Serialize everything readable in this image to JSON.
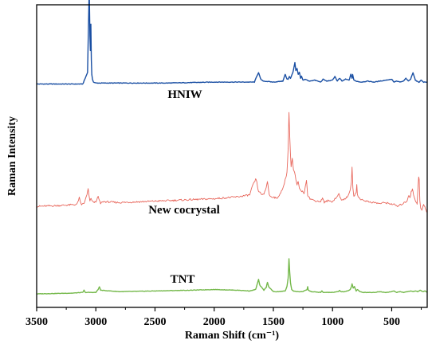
{
  "chart_data": {
    "type": "line",
    "xlabel": "Raman Shift (cm⁻¹)",
    "ylabel": "Raman Intensity",
    "xlim": [
      3500,
      200
    ],
    "x_reversed": true,
    "x_ticks": [
      3500,
      3000,
      2500,
      2000,
      1500,
      1000,
      500
    ],
    "y_ticks_shown": false,
    "grid": false,
    "legend": "none (series labeled inline above each trace)",
    "series": [
      {
        "name": "HNIW",
        "color": "#1a4fa3",
        "baseline": 0.75,
        "x": [
          3500,
          3110,
          3070,
          3056,
          3050,
          3046,
          3042,
          3038,
          3034,
          3028,
          3020,
          3000,
          2800,
          2400,
          2000,
          1800,
          1660,
          1640,
          1625,
          1610,
          1600,
          1580,
          1500,
          1420,
          1400,
          1385,
          1375,
          1365,
          1355,
          1345,
          1335,
          1325,
          1318,
          1310,
          1300,
          1290,
          1280,
          1270,
          1262,
          1250,
          1230,
          1200,
          1150,
          1100,
          1080,
          1050,
          1000,
          980,
          960,
          940,
          920,
          890,
          860,
          845,
          835,
          830,
          820,
          800,
          760,
          700,
          650,
          600,
          550,
          500,
          480,
          460,
          430,
          400,
          380,
          360,
          340,
          320,
          310,
          300,
          290,
          270,
          250,
          230,
          200
        ],
        "y": [
          0,
          0,
          0.12,
          1.0,
          0.5,
          0.35,
          0.62,
          0.25,
          0.1,
          0.05,
          0.02,
          0.01,
          0.01,
          0.01,
          0.02,
          0.02,
          0.02,
          0.08,
          0.12,
          0.06,
          0.04,
          0.03,
          0.02,
          0.03,
          0.1,
          0.05,
          0.05,
          0.08,
          0.06,
          0.09,
          0.12,
          0.18,
          0.22,
          0.14,
          0.16,
          0.1,
          0.12,
          0.06,
          0.08,
          0.04,
          0.05,
          0.03,
          0.04,
          0.02,
          0.05,
          0.03,
          0.04,
          0.08,
          0.03,
          0.06,
          0.03,
          0.05,
          0.04,
          0.1,
          0.06,
          0.1,
          0.04,
          0.03,
          0.02,
          0.03,
          0.02,
          0.03,
          0.04,
          0.05,
          0.02,
          0.03,
          0.02,
          0.03,
          0.06,
          0.03,
          0.05,
          0.12,
          0.08,
          0.04,
          0.03,
          0.02,
          0.04,
          0.02,
          0.02
        ]
      },
      {
        "name": "New cocrystal",
        "color": "#e8675c",
        "baseline": 0.33,
        "x": [
          3500,
          3300,
          3160,
          3140,
          3130,
          3120,
          3100,
          3075,
          3065,
          3058,
          3050,
          3040,
          3020,
          3000,
          2980,
          2970,
          2960,
          2940,
          2800,
          2600,
          2400,
          2200,
          2000,
          1800,
          1700,
          1680,
          1650,
          1640,
          1632,
          1620,
          1600,
          1580,
          1560,
          1550,
          1545,
          1535,
          1520,
          1500,
          1470,
          1450,
          1420,
          1400,
          1385,
          1375,
          1368,
          1362,
          1356,
          1350,
          1340,
          1330,
          1320,
          1310,
          1300,
          1290,
          1280,
          1260,
          1240,
          1230,
          1220,
          1215,
          1210,
          1190,
          1150,
          1100,
          1085,
          1070,
          1040,
          1000,
          980,
          960,
          945,
          938,
          925,
          900,
          870,
          850,
          840,
          835,
          828,
          820,
          800,
          795,
          790,
          770,
          750,
          700,
          650,
          600,
          560,
          520,
          480,
          450,
          420,
          390,
          370,
          355,
          345,
          335,
          325,
          315,
          305,
          295,
          285,
          278,
          272,
          268,
          262,
          255,
          245,
          230,
          215,
          205,
          200
        ],
        "y": [
          0,
          0.01,
          0.02,
          0.09,
          0.04,
          0.02,
          0.03,
          0.12,
          0.18,
          0.11,
          0.06,
          0.08,
          0.04,
          0.05,
          0.1,
          0.06,
          0.03,
          0.05,
          0.04,
          0.05,
          0.06,
          0.07,
          0.08,
          0.1,
          0.12,
          0.2,
          0.28,
          0.26,
          0.18,
          0.15,
          0.13,
          0.12,
          0.2,
          0.26,
          0.22,
          0.12,
          0.1,
          0.1,
          0.08,
          0.12,
          0.18,
          0.28,
          0.35,
          0.6,
          0.98,
          0.75,
          0.55,
          0.42,
          0.5,
          0.38,
          0.35,
          0.28,
          0.22,
          0.26,
          0.18,
          0.16,
          0.14,
          0.2,
          0.28,
          0.2,
          0.12,
          0.08,
          0.06,
          0.05,
          0.09,
          0.04,
          0.06,
          0.05,
          0.08,
          0.1,
          0.14,
          0.1,
          0.06,
          0.08,
          0.1,
          0.18,
          0.25,
          0.4,
          0.2,
          0.1,
          0.15,
          0.22,
          0.12,
          0.08,
          0.07,
          0.05,
          0.04,
          0.03,
          0.04,
          0.03,
          0.02,
          0.0,
          0.02,
          0.04,
          0.06,
          0.12,
          0.09,
          0.15,
          0.18,
          0.12,
          0.08,
          0.05,
          0.03,
          0.2,
          0.3,
          0.28,
          0.06,
          -0.02,
          -0.04,
          0.02,
          -0.02,
          -0.05,
          -0.06
        ]
      },
      {
        "name": "TNT",
        "color": "#74b84a",
        "baseline": 0.03,
        "x": [
          3500,
          3200,
          3110,
          3100,
          3090,
          3000,
          2980,
          2970,
          2960,
          2800,
          2500,
          2200,
          2000,
          1800,
          1700,
          1650,
          1635,
          1625,
          1615,
          1580,
          1560,
          1550,
          1540,
          1500,
          1450,
          1400,
          1385,
          1375,
          1368,
          1362,
          1355,
          1345,
          1330,
          1300,
          1250,
          1215,
          1210,
          1205,
          1180,
          1100,
          1090,
          1080,
          1000,
          950,
          940,
          930,
          900,
          870,
          850,
          840,
          835,
          825,
          815,
          800,
          790,
          770,
          740,
          700,
          650,
          600,
          550,
          500,
          480,
          460,
          430,
          400,
          370,
          340,
          320,
          300,
          280,
          260,
          240,
          220,
          200
        ],
        "y": [
          0,
          0.01,
          0.02,
          0.05,
          0.02,
          0.02,
          0.06,
          0.1,
          0.05,
          0.03,
          0.04,
          0.05,
          0.06,
          0.05,
          0.04,
          0.06,
          0.14,
          0.2,
          0.12,
          0.05,
          0.09,
          0.16,
          0.1,
          0.03,
          0.03,
          0.04,
          0.1,
          0.22,
          0.48,
          0.3,
          0.15,
          0.06,
          0.04,
          0.03,
          0.03,
          0.06,
          0.1,
          0.05,
          0.03,
          0.02,
          0.04,
          0.02,
          0.02,
          0.03,
          0.05,
          0.03,
          0.03,
          0.04,
          0.06,
          0.1,
          0.14,
          0.08,
          0.1,
          0.04,
          0.06,
          0.03,
          0.02,
          0.02,
          0.02,
          0.03,
          0.02,
          0.03,
          0.04,
          0.02,
          0.03,
          0.02,
          0.03,
          0.04,
          0.03,
          0.04,
          0.03,
          0.05,
          0.03,
          0.04,
          0.02
        ]
      }
    ]
  }
}
